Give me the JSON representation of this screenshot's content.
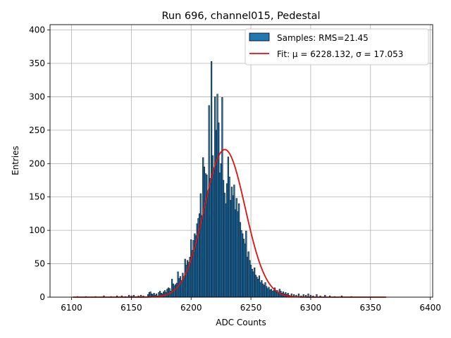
{
  "chart_data": {
    "type": "bar",
    "title": "Run 696, channel015, Pedestal",
    "xlabel": "ADC Counts",
    "ylabel": "Entries",
    "xlim": [
      6082,
      6402
    ],
    "ylim": [
      0,
      408
    ],
    "xticks": [
      6100,
      6150,
      6200,
      6250,
      6300,
      6350,
      6400
    ],
    "yticks": [
      0,
      50,
      100,
      150,
      200,
      250,
      300,
      350,
      400
    ],
    "grid": true,
    "legend_position": "top-right",
    "histogram": {
      "name": "Samples: RMS=21.45",
      "color": "#1f77b4",
      "edgecolor": "#000000",
      "bin_width": 1,
      "bins": [
        {
          "x": 6105,
          "y": 1
        },
        {
          "x": 6112,
          "y": 1
        },
        {
          "x": 6120,
          "y": 1
        },
        {
          "x": 6127,
          "y": 2
        },
        {
          "x": 6133,
          "y": 1
        },
        {
          "x": 6138,
          "y": 2
        },
        {
          "x": 6142,
          "y": 2
        },
        {
          "x": 6145,
          "y": 1
        },
        {
          "x": 6148,
          "y": 3
        },
        {
          "x": 6150,
          "y": 2
        },
        {
          "x": 6152,
          "y": 3
        },
        {
          "x": 6154,
          "y": 1
        },
        {
          "x": 6156,
          "y": 2
        },
        {
          "x": 6158,
          "y": 3
        },
        {
          "x": 6160,
          "y": 2
        },
        {
          "x": 6162,
          "y": 1
        },
        {
          "x": 6164,
          "y": 4
        },
        {
          "x": 6165,
          "y": 7
        },
        {
          "x": 6166,
          "y": 8
        },
        {
          "x": 6167,
          "y": 5
        },
        {
          "x": 6168,
          "y": 4
        },
        {
          "x": 6169,
          "y": 6
        },
        {
          "x": 6170,
          "y": 3
        },
        {
          "x": 6171,
          "y": 5
        },
        {
          "x": 6172,
          "y": 2
        },
        {
          "x": 6173,
          "y": 7
        },
        {
          "x": 6174,
          "y": 9
        },
        {
          "x": 6175,
          "y": 6
        },
        {
          "x": 6176,
          "y": 5
        },
        {
          "x": 6177,
          "y": 8
        },
        {
          "x": 6178,
          "y": 10
        },
        {
          "x": 6179,
          "y": 7
        },
        {
          "x": 6180,
          "y": 12
        },
        {
          "x": 6181,
          "y": 14
        },
        {
          "x": 6182,
          "y": 13
        },
        {
          "x": 6183,
          "y": 9
        },
        {
          "x": 6184,
          "y": 27
        },
        {
          "x": 6185,
          "y": 20
        },
        {
          "x": 6186,
          "y": 17
        },
        {
          "x": 6187,
          "y": 19
        },
        {
          "x": 6188,
          "y": 21
        },
        {
          "x": 6189,
          "y": 38
        },
        {
          "x": 6190,
          "y": 28
        },
        {
          "x": 6191,
          "y": 31
        },
        {
          "x": 6192,
          "y": 25
        },
        {
          "x": 6193,
          "y": 36
        },
        {
          "x": 6194,
          "y": 30
        },
        {
          "x": 6195,
          "y": 57
        },
        {
          "x": 6196,
          "y": 48
        },
        {
          "x": 6197,
          "y": 55
        },
        {
          "x": 6198,
          "y": 52
        },
        {
          "x": 6199,
          "y": 60
        },
        {
          "x": 6200,
          "y": 86
        },
        {
          "x": 6201,
          "y": 70
        },
        {
          "x": 6202,
          "y": 85
        },
        {
          "x": 6203,
          "y": 95
        },
        {
          "x": 6204,
          "y": 92
        },
        {
          "x": 6205,
          "y": 110
        },
        {
          "x": 6206,
          "y": 118
        },
        {
          "x": 6207,
          "y": 125
        },
        {
          "x": 6208,
          "y": 155
        },
        {
          "x": 6209,
          "y": 122
        },
        {
          "x": 6210,
          "y": 209
        },
        {
          "x": 6211,
          "y": 195
        },
        {
          "x": 6212,
          "y": 185
        },
        {
          "x": 6213,
          "y": 183
        },
        {
          "x": 6214,
          "y": 155
        },
        {
          "x": 6215,
          "y": 287
        },
        {
          "x": 6216,
          "y": 178
        },
        {
          "x": 6217,
          "y": 353
        },
        {
          "x": 6218,
          "y": 212
        },
        {
          "x": 6219,
          "y": 190
        },
        {
          "x": 6220,
          "y": 300
        },
        {
          "x": 6221,
          "y": 250
        },
        {
          "x": 6222,
          "y": 304
        },
        {
          "x": 6223,
          "y": 261
        },
        {
          "x": 6224,
          "y": 186
        },
        {
          "x": 6225,
          "y": 200
        },
        {
          "x": 6226,
          "y": 299
        },
        {
          "x": 6227,
          "y": 175
        },
        {
          "x": 6228,
          "y": 156
        },
        {
          "x": 6229,
          "y": 140
        },
        {
          "x": 6230,
          "y": 170
        },
        {
          "x": 6231,
          "y": 210
        },
        {
          "x": 6232,
          "y": 180
        },
        {
          "x": 6233,
          "y": 145
        },
        {
          "x": 6234,
          "y": 165
        },
        {
          "x": 6235,
          "y": 152
        },
        {
          "x": 6236,
          "y": 168
        },
        {
          "x": 6237,
          "y": 131
        },
        {
          "x": 6238,
          "y": 148
        },
        {
          "x": 6239,
          "y": 128
        },
        {
          "x": 6240,
          "y": 140
        },
        {
          "x": 6241,
          "y": 112
        },
        {
          "x": 6242,
          "y": 100
        },
        {
          "x": 6243,
          "y": 95
        },
        {
          "x": 6244,
          "y": 87
        },
        {
          "x": 6245,
          "y": 80
        },
        {
          "x": 6246,
          "y": 99
        },
        {
          "x": 6247,
          "y": 60
        },
        {
          "x": 6248,
          "y": 68
        },
        {
          "x": 6249,
          "y": 55
        },
        {
          "x": 6250,
          "y": 48
        },
        {
          "x": 6251,
          "y": 42
        },
        {
          "x": 6252,
          "y": 38
        },
        {
          "x": 6253,
          "y": 44
        },
        {
          "x": 6254,
          "y": 33
        },
        {
          "x": 6255,
          "y": 30
        },
        {
          "x": 6256,
          "y": 27
        },
        {
          "x": 6257,
          "y": 32
        },
        {
          "x": 6258,
          "y": 22
        },
        {
          "x": 6259,
          "y": 25
        },
        {
          "x": 6260,
          "y": 20
        },
        {
          "x": 6261,
          "y": 18
        },
        {
          "x": 6262,
          "y": 22
        },
        {
          "x": 6263,
          "y": 16
        },
        {
          "x": 6264,
          "y": 13
        },
        {
          "x": 6265,
          "y": 15
        },
        {
          "x": 6266,
          "y": 11
        },
        {
          "x": 6267,
          "y": 12
        },
        {
          "x": 6268,
          "y": 9
        },
        {
          "x": 6269,
          "y": 10
        },
        {
          "x": 6270,
          "y": 14
        },
        {
          "x": 6271,
          "y": 8
        },
        {
          "x": 6272,
          "y": 10
        },
        {
          "x": 6273,
          "y": 7
        },
        {
          "x": 6274,
          "y": 12
        },
        {
          "x": 6275,
          "y": 9
        },
        {
          "x": 6276,
          "y": 6
        },
        {
          "x": 6277,
          "y": 8
        },
        {
          "x": 6278,
          "y": 5
        },
        {
          "x": 6279,
          "y": 7
        },
        {
          "x": 6280,
          "y": 4
        },
        {
          "x": 6281,
          "y": 6
        },
        {
          "x": 6282,
          "y": 3
        },
        {
          "x": 6284,
          "y": 5
        },
        {
          "x": 6286,
          "y": 4
        },
        {
          "x": 6288,
          "y": 3
        },
        {
          "x": 6290,
          "y": 5
        },
        {
          "x": 6292,
          "y": 2
        },
        {
          "x": 6294,
          "y": 4
        },
        {
          "x": 6296,
          "y": 3
        },
        {
          "x": 6298,
          "y": 5
        },
        {
          "x": 6300,
          "y": 3
        },
        {
          "x": 6302,
          "y": 2
        },
        {
          "x": 6305,
          "y": 4
        },
        {
          "x": 6308,
          "y": 2
        },
        {
          "x": 6312,
          "y": 3
        },
        {
          "x": 6316,
          "y": 2
        },
        {
          "x": 6320,
          "y": 1
        },
        {
          "x": 6326,
          "y": 2
        },
        {
          "x": 6334,
          "y": 1
        }
      ]
    },
    "fit": {
      "name": "Fit: μ = 6228.132, σ = 17.053",
      "color": "#dd1111",
      "function": "gaussian",
      "mu": 6228.132,
      "sigma": 17.053,
      "amplitude": 221,
      "x_range": [
        6101,
        6363
      ]
    }
  }
}
